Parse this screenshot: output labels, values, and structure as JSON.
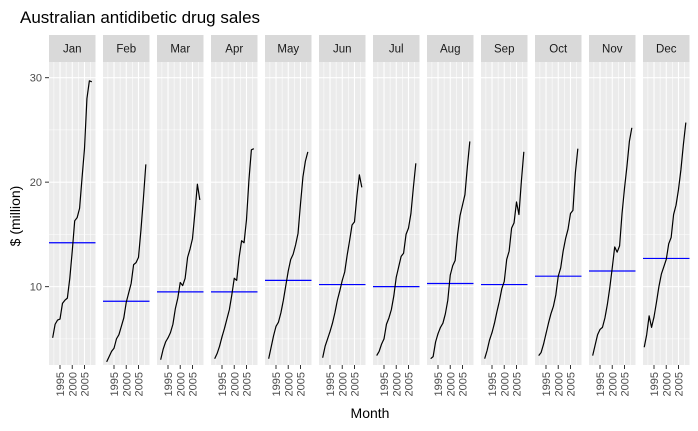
{
  "chart_data": {
    "type": "line",
    "title": "Australian antidibetic drug sales",
    "xlabel": "Month",
    "ylabel": "$ (million)",
    "facet_by": "month",
    "ylim": [
      2.5,
      31.5
    ],
    "xlim": [
      1990.5,
      2009.5
    ],
    "y_ticks": [
      10,
      20,
      30
    ],
    "x_ticks": [
      1995,
      2000,
      2005
    ],
    "x_tick_labels": [
      "1995",
      "2000",
      "2005"
    ],
    "grid": true,
    "line_color": "#000000",
    "mean_line_color": "#0000ff",
    "panels": [
      {
        "label": "Jan",
        "mean": 14.2,
        "x": [
          1992,
          1993,
          1994,
          1995,
          1996,
          1997,
          1998,
          1999,
          2000,
          2001,
          2002,
          2003,
          2004,
          2005,
          2006,
          2007,
          2008
        ],
        "y": [
          5.1,
          6.4,
          6.8,
          6.9,
          8.4,
          8.7,
          8.9,
          10.8,
          13.4,
          16.3,
          16.6,
          17.5,
          20.4,
          23.2,
          28.0,
          29.7,
          29.6
        ]
      },
      {
        "label": "Feb",
        "mean": 8.6,
        "x": [
          1992,
          1993,
          1994,
          1995,
          1996,
          1997,
          1998,
          1999,
          2000,
          2001,
          2002,
          2003,
          2004,
          2005,
          2006,
          2007,
          2008
        ],
        "y": [
          2.8,
          3.3,
          3.8,
          4.1,
          5.0,
          5.4,
          6.2,
          7.0,
          8.5,
          9.4,
          10.3,
          12.1,
          12.3,
          12.8,
          15.4,
          18.4,
          21.7
        ]
      },
      {
        "label": "Mar",
        "mean": 9.5,
        "x": [
          1992,
          1993,
          1994,
          1995,
          1996,
          1997,
          1998,
          1999,
          2000,
          2001,
          2002,
          2003,
          2004,
          2005,
          2006,
          2007,
          2008
        ],
        "y": [
          3.0,
          4.0,
          4.7,
          5.1,
          5.6,
          6.4,
          7.9,
          8.9,
          10.4,
          10.1,
          10.8,
          12.8,
          13.6,
          14.6,
          17.1,
          19.8,
          18.3
        ]
      },
      {
        "label": "Apr",
        "mean": 9.5,
        "x": [
          1992,
          1993,
          1994,
          1995,
          1996,
          1997,
          1998,
          1999,
          2000,
          2001,
          2002,
          2003,
          2004,
          2005,
          2006,
          2007,
          2008
        ],
        "y": [
          3.1,
          3.6,
          4.3,
          5.2,
          6.0,
          6.9,
          7.8,
          9.2,
          10.8,
          10.6,
          12.8,
          14.4,
          14.2,
          16.4,
          20.2,
          23.1,
          23.2
        ]
      },
      {
        "label": "May",
        "mean": 10.6,
        "x": [
          1992,
          1993,
          1994,
          1995,
          1996,
          1997,
          1998,
          1999,
          2000,
          2001,
          2002,
          2003,
          2004,
          2005,
          2006,
          2007,
          2008
        ],
        "y": [
          3.1,
          4.2,
          5.3,
          6.2,
          6.6,
          7.5,
          8.7,
          10.1,
          11.5,
          12.6,
          13.1,
          14.0,
          15.1,
          17.9,
          20.5,
          22.0,
          22.9
        ]
      },
      {
        "label": "Jun",
        "mean": 10.2,
        "x": [
          1992,
          1993,
          1994,
          1995,
          1996,
          1997,
          1998,
          1999,
          2000,
          2001,
          2002,
          2003,
          2004,
          2005,
          2006,
          2007,
          2008
        ],
        "y": [
          3.2,
          4.3,
          5.0,
          5.7,
          6.5,
          7.5,
          8.7,
          9.6,
          10.6,
          11.4,
          13.0,
          14.4,
          15.9,
          16.2,
          18.7,
          20.7,
          19.5
        ]
      },
      {
        "label": "Jul",
        "mean": 10.0,
        "x": [
          1992,
          1993,
          1994,
          1995,
          1996,
          1997,
          1998,
          1999,
          2000,
          2001,
          2002,
          2003,
          2004,
          2005,
          2006,
          2007,
          2008
        ],
        "y": [
          3.4,
          3.8,
          4.5,
          5.0,
          6.4,
          7.0,
          7.8,
          9.1,
          10.9,
          11.9,
          12.9,
          13.2,
          15.0,
          15.6,
          17.0,
          19.5,
          21.8
        ]
      },
      {
        "label": "Aug",
        "mean": 10.3,
        "x": [
          1992,
          1993,
          1994,
          1995,
          1996,
          1997,
          1998,
          1999,
          2000,
          2001,
          2002,
          2003,
          2004,
          2005,
          2006,
          2007,
          2008
        ],
        "y": [
          3.1,
          3.3,
          4.7,
          5.5,
          6.1,
          6.5,
          7.4,
          8.7,
          11.1,
          12.0,
          12.5,
          15.0,
          16.8,
          17.8,
          18.8,
          21.5,
          23.9
        ]
      },
      {
        "label": "Sep",
        "mean": 10.2,
        "x": [
          1992,
          1993,
          1994,
          1995,
          1996,
          1997,
          1998,
          1999,
          2000,
          2001,
          2002,
          2003,
          2004,
          2005,
          2006,
          2007,
          2008
        ],
        "y": [
          3.1,
          3.9,
          4.9,
          5.6,
          6.5,
          7.6,
          8.6,
          9.8,
          10.5,
          12.6,
          13.4,
          15.6,
          16.1,
          18.1,
          16.9,
          20.1,
          22.9
        ]
      },
      {
        "label": "Oct",
        "mean": 11.0,
        "x": [
          1992,
          1993,
          1994,
          1995,
          1996,
          1997,
          1998,
          1999,
          2000,
          2001,
          2002,
          2003,
          2004,
          2005,
          2006,
          2007,
          2008
        ],
        "y": [
          3.4,
          3.7,
          4.5,
          5.5,
          6.5,
          7.4,
          8.1,
          9.2,
          11.0,
          11.8,
          13.4,
          14.6,
          15.5,
          17.0,
          17.3,
          20.9,
          23.2
        ]
      },
      {
        "label": "Nov",
        "mean": 11.5,
        "x": [
          1992,
          1993,
          1994,
          1995,
          1996,
          1997,
          1998,
          1999,
          2000,
          2001,
          2002,
          2003,
          2004,
          2005,
          2006,
          2007,
          2008
        ],
        "y": [
          3.4,
          4.4,
          5.4,
          5.9,
          6.1,
          7.0,
          8.3,
          9.9,
          11.8,
          13.8,
          13.3,
          13.9,
          17.0,
          19.4,
          21.5,
          23.9,
          25.2
        ]
      },
      {
        "label": "Dec",
        "mean": 12.7,
        "x": [
          1991,
          1992,
          1993,
          1994,
          1995,
          1996,
          1997,
          1998,
          1999,
          2000,
          2001,
          2002,
          2003,
          2004,
          2005,
          2006,
          2007,
          2008
        ],
        "y": [
          4.2,
          5.4,
          7.2,
          6.1,
          7.1,
          8.5,
          10.0,
          11.2,
          11.9,
          12.6,
          14.1,
          14.7,
          16.9,
          17.8,
          19.3,
          21.2,
          23.6,
          25.7
        ]
      }
    ]
  }
}
